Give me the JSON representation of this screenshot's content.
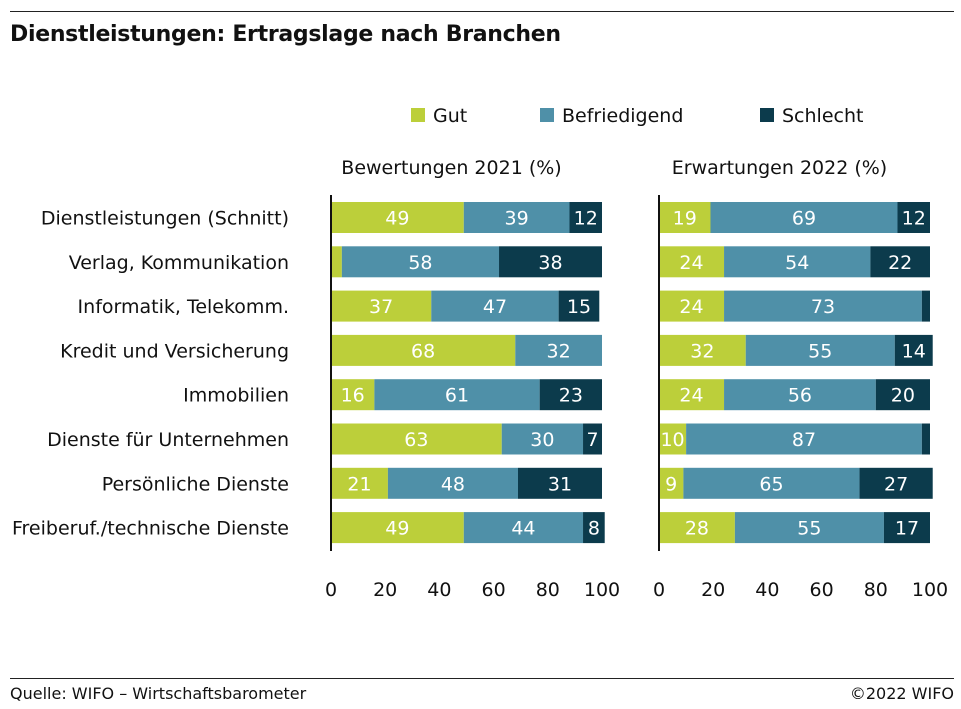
{
  "title": "Dienstleistungen: Ertragslage nach Branchen",
  "source": "Quelle: WIFO – Wirtschaftsbarometer",
  "copyright": "©2022 WIFO",
  "colors": {
    "Gut": "#bccf3a",
    "Befriedigend": "#4f90a8",
    "Schlecht": "#0c3b4c"
  },
  "chart_data": {
    "type": "bar",
    "orientation": "horizontal",
    "stacked": true,
    "categories": [
      "Dienstleistungen (Schnitt)",
      "Verlag, Kommunikation",
      "Informatik, Telekomm.",
      "Kredit und Versicherung",
      "Immobilien",
      "Dienste für Unternehmen",
      "Persönliche Dienste",
      "Freiberuf./technische Dienste"
    ],
    "legend": [
      "Gut",
      "Befriedigend",
      "Schlecht"
    ],
    "legend_position": "top",
    "xlim": [
      0,
      100
    ],
    "xticks": [
      0,
      20,
      40,
      60,
      80,
      100
    ],
    "panels": [
      {
        "title": "Bewertungen 2021 (%)",
        "series": [
          {
            "name": "Gut",
            "values": [
              49,
              4,
              37,
              68,
              16,
              63,
              21,
              49
            ],
            "labels": [
              "49",
              "",
              "37",
              "68",
              "16",
              "63",
              "21",
              "49"
            ]
          },
          {
            "name": "Befriedigend",
            "values": [
              39,
              58,
              47,
              32,
              61,
              30,
              48,
              44
            ],
            "labels": [
              "39",
              "58",
              "47",
              "32",
              "61",
              "30",
              "48",
              "44"
            ]
          },
          {
            "name": "Schlecht",
            "values": [
              12,
              38,
              15,
              0,
              23,
              7,
              31,
              8
            ],
            "labels": [
              "12",
              "38",
              "15",
              "",
              "23",
              "7",
              "31",
              "8"
            ]
          }
        ]
      },
      {
        "title": "Erwartungen 2022 (%)",
        "series": [
          {
            "name": "Gut",
            "values": [
              19,
              24,
              24,
              32,
              24,
              10,
              9,
              28
            ],
            "labels": [
              "19",
              "24",
              "24",
              "32",
              "24",
              "10",
              "9",
              "28"
            ]
          },
          {
            "name": "Befriedigend",
            "values": [
              69,
              54,
              73,
              55,
              56,
              87,
              65,
              55
            ],
            "labels": [
              "69",
              "54",
              "73",
              "55",
              "56",
              "87",
              "65",
              "55"
            ]
          },
          {
            "name": "Schlecht",
            "values": [
              12,
              22,
              3,
              14,
              20,
              3,
              27,
              17
            ],
            "labels": [
              "12",
              "22",
              "",
              "14",
              "20",
              "",
              "27",
              "17"
            ]
          }
        ]
      }
    ]
  }
}
